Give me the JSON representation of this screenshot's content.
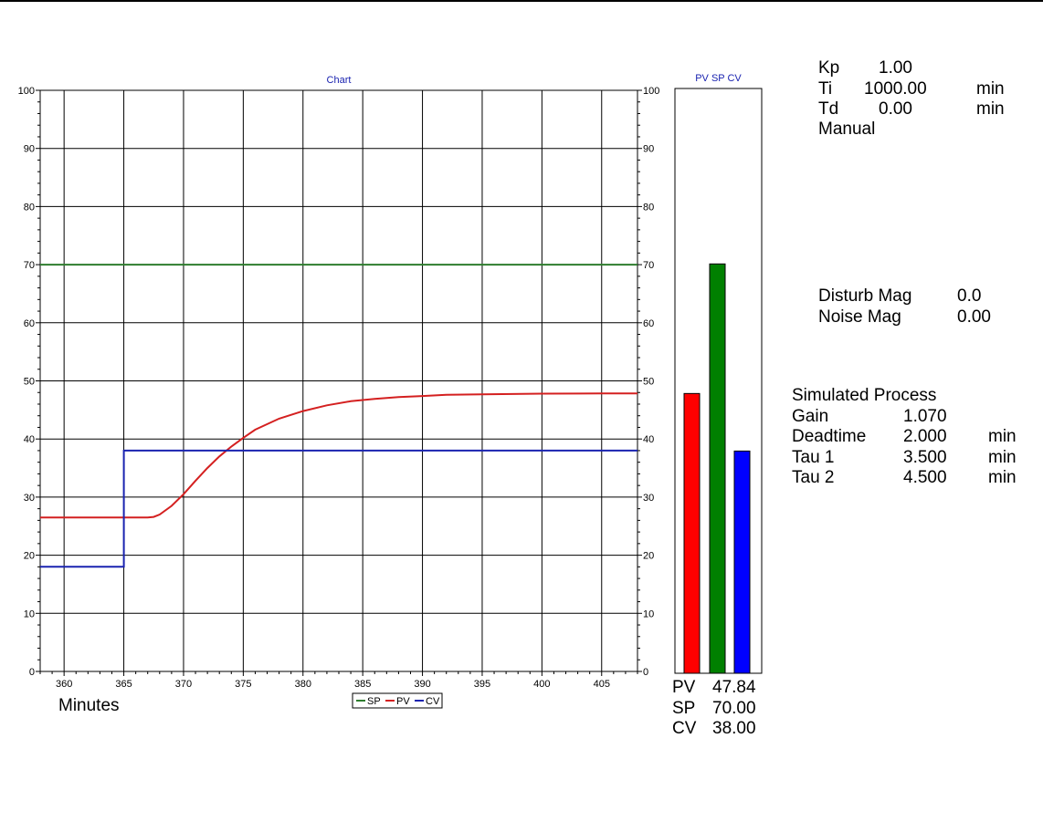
{
  "chart_data": [
    {
      "type": "line",
      "title": "Chart",
      "xlabel": "Minutes",
      "ylabel": "",
      "xlim": [
        358,
        408
      ],
      "ylim": [
        0,
        100
      ],
      "x_ticks": [
        360,
        365,
        370,
        375,
        380,
        385,
        390,
        395,
        400,
        405
      ],
      "y_ticks": [
        0,
        10,
        20,
        30,
        40,
        50,
        60,
        70,
        80,
        90,
        100
      ],
      "grid": true,
      "legend": [
        "SP",
        "PV",
        "CV"
      ],
      "legend_position": "bottom-center",
      "series": [
        {
          "name": "SP",
          "color": "#2e7d2e",
          "points": [
            [
              358,
              70
            ],
            [
              408,
              70
            ]
          ]
        },
        {
          "name": "PV",
          "color": "#d42020",
          "points": [
            [
              358,
              26.5
            ],
            [
              367,
              26.5
            ],
            [
              367.5,
              26.6
            ],
            [
              368,
              27
            ],
            [
              369,
              28.5
            ],
            [
              370,
              30.5
            ],
            [
              371,
              32.8
            ],
            [
              372,
              35
            ],
            [
              373,
              37
            ],
            [
              374,
              38.7
            ],
            [
              375,
              40.2
            ],
            [
              376,
              41.6
            ],
            [
              378,
              43.5
            ],
            [
              380,
              44.8
            ],
            [
              382,
              45.8
            ],
            [
              384,
              46.5
            ],
            [
              386,
              46.9
            ],
            [
              388,
              47.2
            ],
            [
              390,
              47.4
            ],
            [
              392,
              47.6
            ],
            [
              395,
              47.7
            ],
            [
              400,
              47.8
            ],
            [
              405,
              47.84
            ],
            [
              408,
              47.84
            ]
          ]
        },
        {
          "name": "CV",
          "color": "#1a23b0",
          "points": [
            [
              358,
              18
            ],
            [
              365,
              18
            ],
            [
              365,
              38
            ],
            [
              408,
              38
            ]
          ]
        }
      ]
    },
    {
      "type": "bar",
      "title": "PV SP CV",
      "categories": [
        "PV",
        "SP",
        "CV"
      ],
      "values": [
        47.84,
        70.0,
        38.0
      ],
      "colors": [
        "#ff0000",
        "#008000",
        "#0000ff"
      ],
      "ylim": [
        0,
        100
      ]
    }
  ],
  "readout": {
    "rows": [
      {
        "label": "PV",
        "value": "47.84"
      },
      {
        "label": "SP",
        "value": "70.00"
      },
      {
        "label": "CV",
        "value": "38.00"
      }
    ]
  },
  "tuning": {
    "kp_label": "Kp",
    "kp_value": "1.00",
    "ti_label": "Ti",
    "ti_value": "1000.00",
    "ti_unit": "min",
    "td_label": "Td",
    "td_value": "0.00",
    "td_unit": "min",
    "mode": "Manual"
  },
  "disturbance": {
    "disturb_label": "Disturb Mag",
    "disturb_value": "0.0",
    "noise_label": "Noise Mag",
    "noise_value": "0.00"
  },
  "process": {
    "title": "Simulated Process",
    "rows": [
      {
        "label": "Gain",
        "value": "1.070",
        "unit": ""
      },
      {
        "label": "Deadtime",
        "value": "2.000",
        "unit": "min"
      },
      {
        "label": "Tau 1",
        "value": "3.500",
        "unit": "min"
      },
      {
        "label": "Tau 2",
        "value": "4.500",
        "unit": "min"
      }
    ]
  }
}
